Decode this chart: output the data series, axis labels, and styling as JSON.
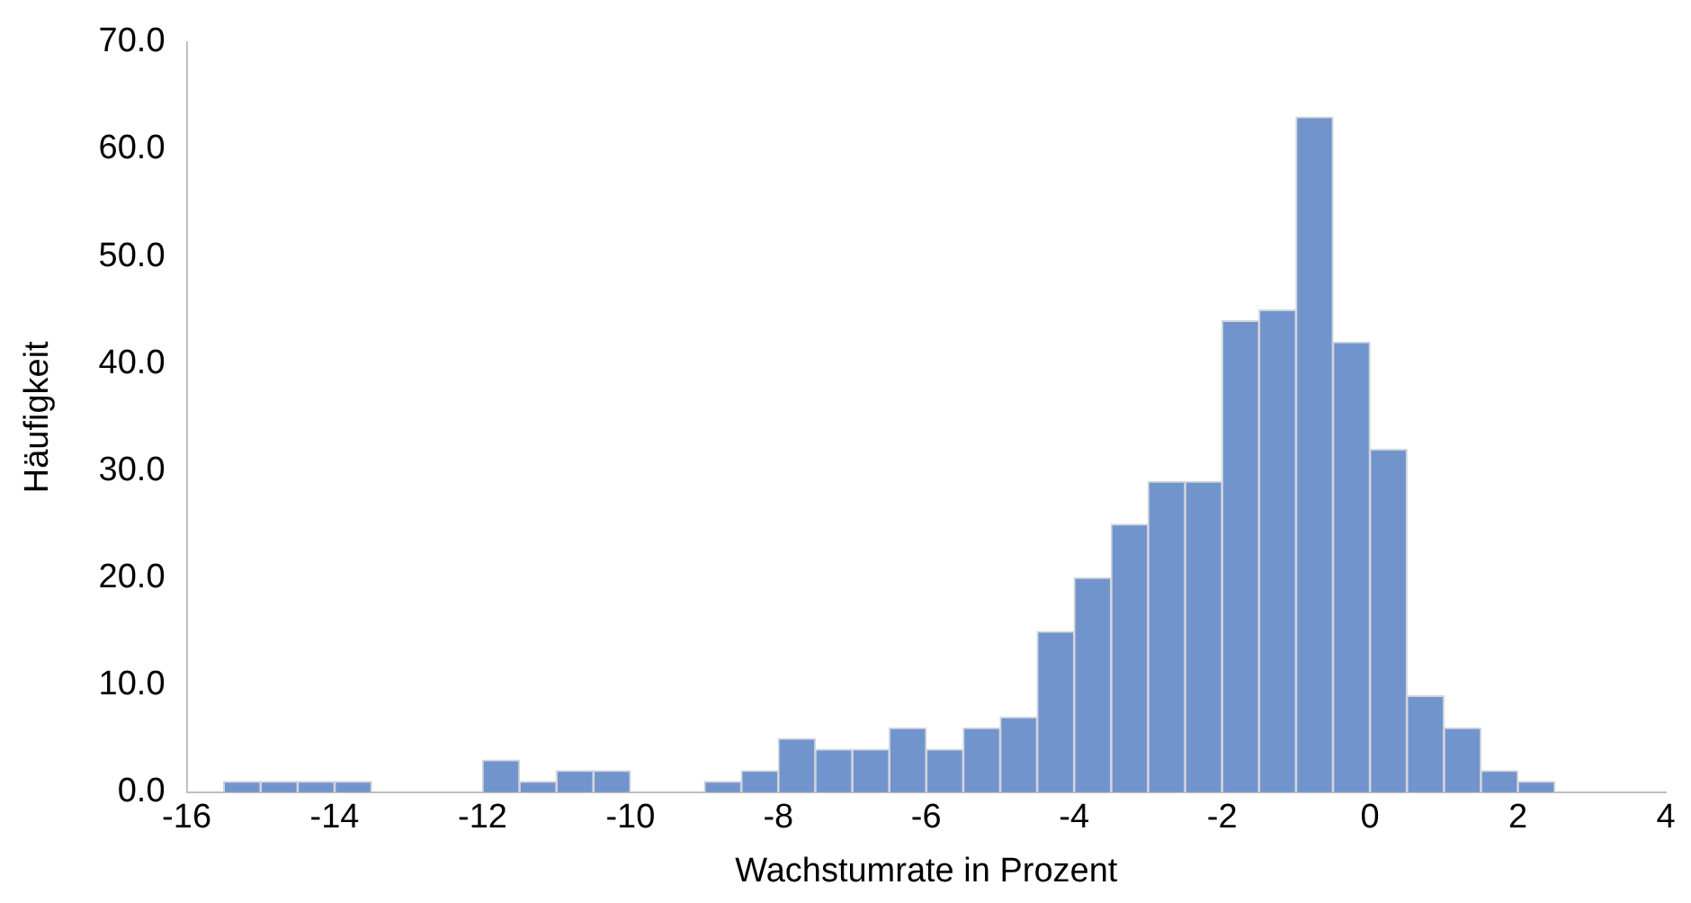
{
  "chart_data": {
    "type": "histogram",
    "xlabel": "Wachstumrate in Prozent",
    "ylabel": "Häufigkeit",
    "bins": [
      -15.5,
      -15,
      -14.5,
      -14,
      -13.5,
      -13,
      -12.5,
      -12,
      -11.5,
      -11,
      -10.5,
      -10,
      -9.5,
      -9,
      -8.5,
      -8,
      -7.5,
      -7,
      -6.5,
      -6,
      -5.5,
      -5,
      -4.5,
      -4,
      -3.5,
      -3,
      -2.5,
      -2,
      -1.5,
      -1,
      -0.5,
      0,
      0.5,
      1,
      1.5,
      2,
      2.5
    ],
    "values": [
      1,
      1,
      1,
      1,
      0,
      0,
      0,
      3,
      1,
      2,
      2,
      0,
      0,
      1,
      2,
      5,
      4,
      4,
      6,
      4,
      6,
      7,
      15,
      20,
      25,
      29,
      29,
      44,
      45,
      63,
      42,
      32,
      9,
      6,
      2,
      1
    ],
    "color": "#7294cc",
    "xlim": [
      -16,
      4
    ],
    "xticks": [
      -16,
      -14,
      -12,
      -10,
      -8,
      -6,
      -4,
      -2,
      0,
      2,
      4
    ],
    "ylim": [
      0,
      70
    ],
    "yticks": [
      {
        "value": 0,
        "label": "0.0"
      },
      {
        "value": 10,
        "label": "10.0"
      },
      {
        "value": 20,
        "label": "20.0"
      },
      {
        "value": 30,
        "label": "30.0"
      },
      {
        "value": 40,
        "label": "40.0"
      },
      {
        "value": 50,
        "label": "50.0"
      },
      {
        "value": 60,
        "label": "60.0"
      },
      {
        "value": 70,
        "label": "70.0"
      }
    ],
    "grid": false,
    "legend": false
  }
}
